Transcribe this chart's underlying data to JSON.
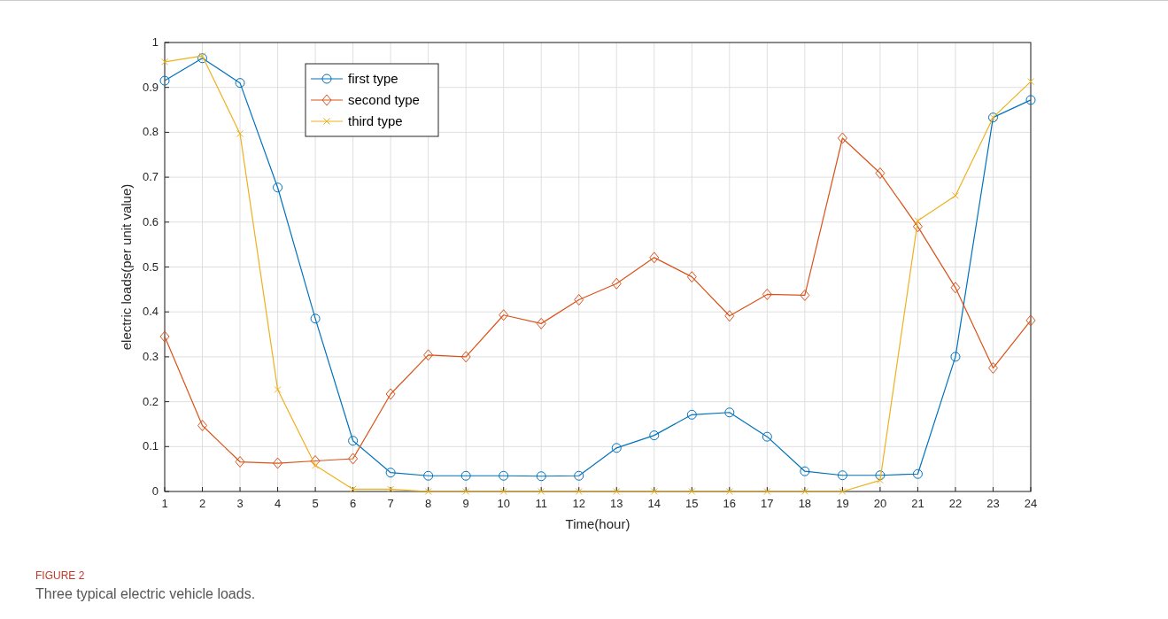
{
  "chart_data": {
    "type": "line",
    "xlabel": "Time(hour)",
    "ylabel": "electric loads(per unit value)",
    "annotations": [
      "FIGURE 2",
      "Three typical electric vehicle loads."
    ],
    "x": [
      1,
      2,
      3,
      4,
      5,
      6,
      7,
      8,
      9,
      10,
      11,
      12,
      13,
      14,
      15,
      16,
      17,
      18,
      19,
      20,
      21,
      22,
      23,
      24
    ],
    "xlim": [
      1,
      24
    ],
    "xticks": [
      1,
      2,
      3,
      4,
      5,
      6,
      7,
      8,
      9,
      10,
      11,
      12,
      13,
      14,
      15,
      16,
      17,
      18,
      19,
      20,
      21,
      22,
      23,
      24
    ],
    "ylim": [
      0,
      1
    ],
    "yticks": [
      0,
      0.1,
      0.2,
      0.3,
      0.4,
      0.5,
      0.6,
      0.7,
      0.8,
      0.9,
      1
    ],
    "grid": true,
    "legend": "top left",
    "line_style": "solid",
    "series": [
      {
        "name": "first type",
        "color": "#0072bd",
        "marker": "circle",
        "values": [
          0.915,
          0.965,
          0.91,
          0.677,
          0.385,
          0.113,
          0.042,
          0.035,
          0.035,
          0.035,
          0.034,
          0.035,
          0.097,
          0.125,
          0.171,
          0.176,
          0.122,
          0.045,
          0.036,
          0.036,
          0.039,
          0.3,
          0.833,
          0.872
        ]
      },
      {
        "name": "second type",
        "color": "#d95319",
        "marker": "diamond",
        "values": [
          0.345,
          0.147,
          0.066,
          0.063,
          0.068,
          0.073,
          0.217,
          0.304,
          0.3,
          0.393,
          0.374,
          0.427,
          0.463,
          0.521,
          0.478,
          0.391,
          0.439,
          0.437,
          0.787,
          0.709,
          0.59,
          0.454,
          0.275,
          0.381
        ]
      },
      {
        "name": "third type",
        "color": "#edb120",
        "marker": "cross",
        "values": [
          0.957,
          0.97,
          0.797,
          0.227,
          0.058,
          0.005,
          0.005,
          0,
          0,
          0,
          0,
          0,
          0,
          0,
          0,
          0,
          0,
          0,
          0,
          0.025,
          0.603,
          0.659,
          0.833,
          0.913
        ]
      }
    ]
  }
}
